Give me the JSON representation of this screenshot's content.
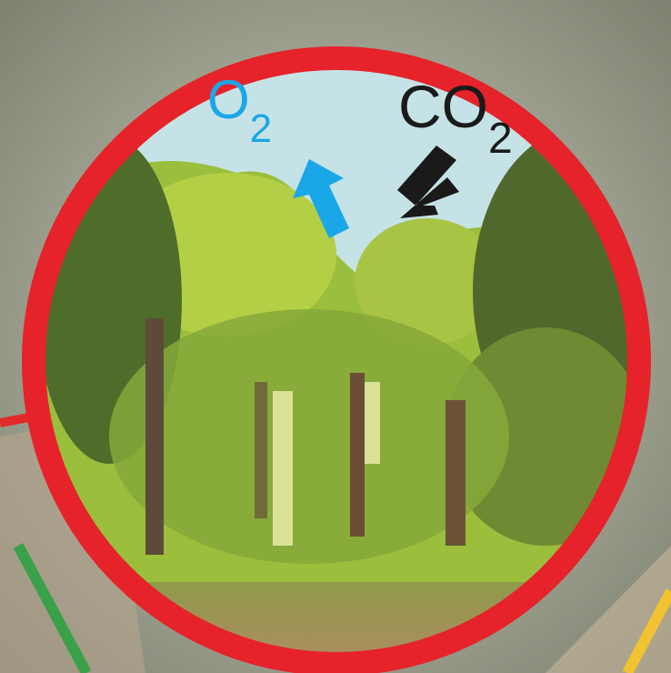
{
  "labels": {
    "oxygen": {
      "symbol": "O",
      "subscript": "2"
    },
    "carbon_dioxide": {
      "symbol": "CO",
      "subscript": "2"
    }
  }
}
